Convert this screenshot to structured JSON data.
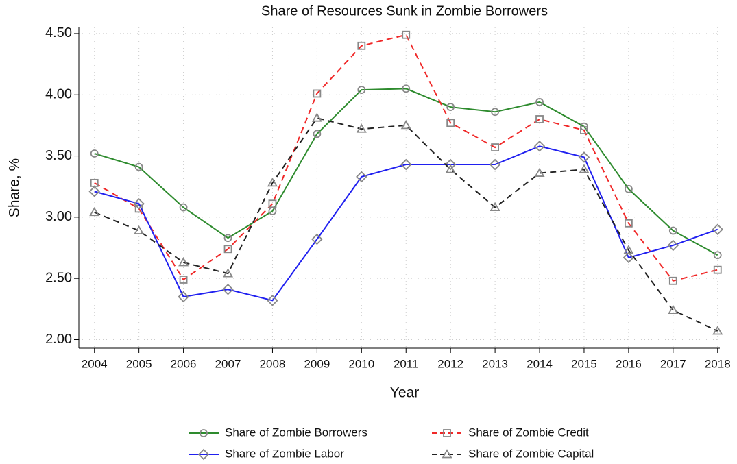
{
  "chart_data": {
    "type": "line",
    "title": "Share of Resources Sunk in Zombie Borrowers",
    "x_label": "Year",
    "y_label": "Share, %",
    "x": [
      2004,
      2005,
      2006,
      2007,
      2008,
      2009,
      2010,
      2011,
      2012,
      2013,
      2014,
      2015,
      2016,
      2017,
      2018
    ],
    "xlim": [
      2003.65,
      2018.05
    ],
    "xticks": [
      2004,
      2005,
      2006,
      2007,
      2008,
      2009,
      2010,
      2011,
      2012,
      2013,
      2014,
      2015,
      2016,
      2017,
      2018
    ],
    "ylim": [
      1.93,
      4.55
    ],
    "yticks": [
      {
        "value": 2,
        "label": "2.00"
      },
      {
        "value": 2.5,
        "label": "2.50"
      },
      {
        "value": 3,
        "label": "3.00"
      },
      {
        "value": 3.5,
        "label": "3.50"
      },
      {
        "value": 4,
        "label": "4.00"
      },
      {
        "value": 4.5,
        "label": "4.50"
      }
    ],
    "grid": true,
    "series": [
      {
        "name": "Share of Zombie Borrowers",
        "color": "#2e8b2e",
        "line_style": "solid",
        "marker": "circle",
        "values": [
          3.52,
          3.41,
          3.08,
          2.83,
          3.05,
          3.68,
          4.04,
          4.05,
          3.9,
          3.86,
          3.94,
          3.74,
          3.23,
          2.89,
          2.69
        ]
      },
      {
        "name": "Share of Zombie Credit",
        "color": "#f02828",
        "line_style": "dashed",
        "marker": "square",
        "values": [
          3.28,
          3.07,
          2.49,
          2.74,
          3.11,
          4.01,
          4.4,
          4.49,
          3.77,
          3.57,
          3.8,
          3.71,
          2.95,
          2.48,
          2.57
        ]
      },
      {
        "name": "Share of Zombie Labor",
        "color": "#2020f0",
        "line_style": "solid",
        "marker": "diamond",
        "values": [
          3.21,
          3.11,
          2.35,
          2.41,
          2.32,
          2.82,
          3.33,
          3.43,
          3.43,
          3.43,
          3.58,
          3.49,
          2.67,
          2.77,
          2.9
        ]
      },
      {
        "name": "Share of Zombie Capital",
        "color": "#222222",
        "line_style": "dashed",
        "marker": "triangle",
        "values": [
          3.04,
          2.89,
          2.63,
          2.54,
          3.28,
          3.81,
          3.72,
          3.75,
          3.39,
          3.08,
          3.36,
          3.39,
          2.73,
          2.24,
          2.07
        ]
      }
    ]
  }
}
